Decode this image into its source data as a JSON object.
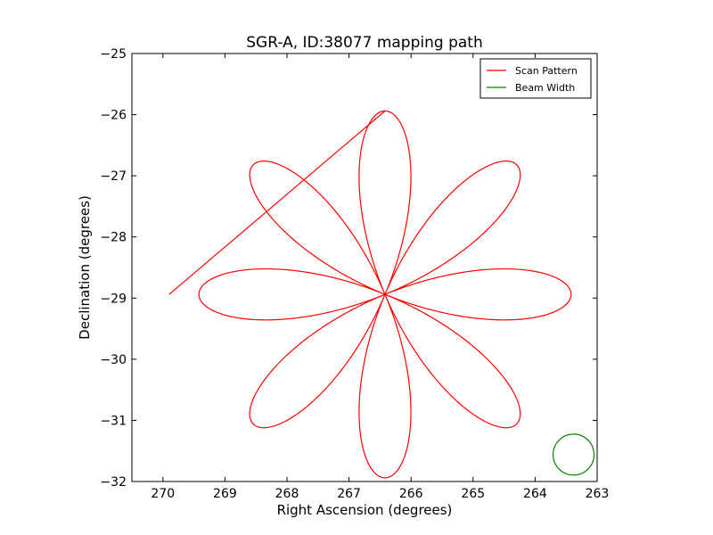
{
  "chart_data": {
    "type": "line",
    "title": "SGR-A, ID:38077 mapping path",
    "xlabel": "Right Ascension (degrees)",
    "ylabel": "Declination (degrees)",
    "xlim": [
      270.5,
      263.0
    ],
    "ylim": [
      -32,
      -25
    ],
    "x_ticks": [
      270,
      269,
      268,
      267,
      266,
      265,
      264,
      263
    ],
    "y_ticks": [
      -25,
      -26,
      -27,
      -28,
      -29,
      -30,
      -31,
      -32
    ],
    "grid": false,
    "legend_position": "top-right",
    "center": {
      "ra": 266.42,
      "dec": -28.94
    },
    "series": [
      {
        "name": "Scan Pattern",
        "color": "#ff0000",
        "petal_count": 8,
        "petal_length_deg": 3.0,
        "petal_start_angle_deg": 90,
        "start_point": {
          "ra": 269.9,
          "dec": -28.94
        }
      },
      {
        "name": "Beam Width",
        "color": "#008000",
        "circle": {
          "ra": 263.38,
          "dec": -31.56,
          "radius_deg": 0.33
        }
      }
    ]
  }
}
